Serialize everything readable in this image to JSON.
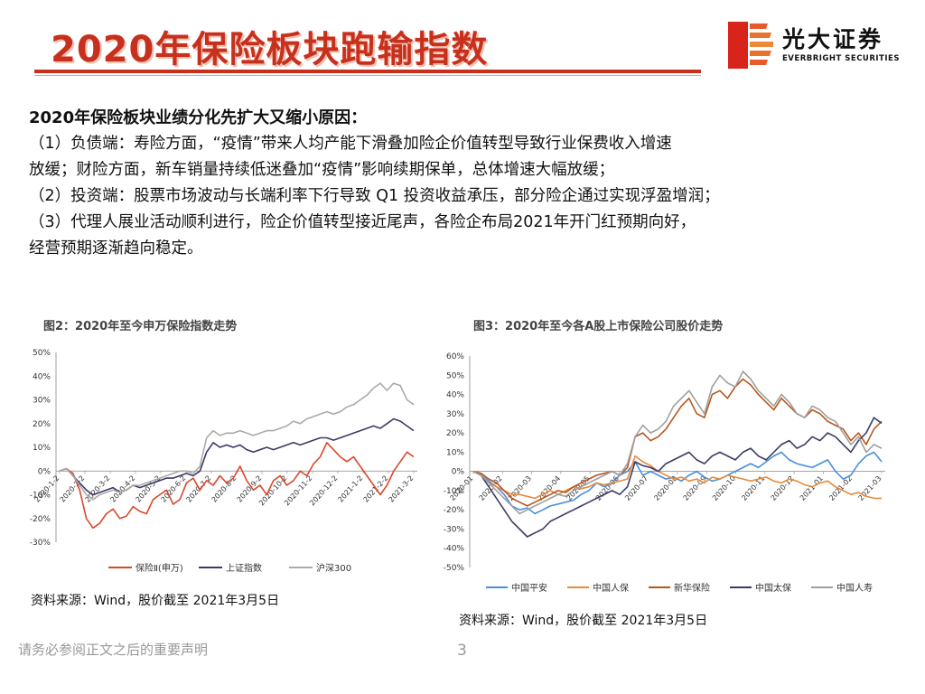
{
  "header": {
    "title": "2020年保险板块跑输指数",
    "logo_cn": "光大证券",
    "logo_en": "EVERBRIGHT SECURITIES"
  },
  "body": {
    "heading": "2020年保险板块业绩分化先扩大又缩小原因：",
    "lines": [
      "（1）负债端：寿险方面，“疫情”带来人均产能下滑叠加险企价值转型导致行业保费收入增速",
      "放缓；财险方面，新车销量持续低迷叠加“疫情”影响续期保单，总体增速大幅放缓；",
      "（2）投资端：股票市场波动与长端利率下行导致 Q1 投资收益承压，部分险企通过实现浮盈增润；",
      "（3）代理人展业活动顺利进行，险企价值转型接近尾声，各险企布局2021年开门红预期向好，",
      "经营预期逐渐趋向稳定。"
    ]
  },
  "figures": {
    "fig2_title": "图2：2020年至今申万保险指数走势",
    "fig3_title": "图3：2020年至今各A股上市保险公司股价走势",
    "fig2_source": "资料来源：Wind，股价截至 2021年3月5日",
    "fig3_source": "资料来源：Wind，股价截至 2021年3月5日"
  },
  "footer": {
    "note": "请务必参阅正文之后的重要声明",
    "page": "3"
  },
  "chart_data": [
    {
      "type": "line",
      "yticks": [
        "50%",
        "40%",
        "30%",
        "20%",
        "10%",
        "0%",
        "-10%",
        "-20%",
        "-30%"
      ],
      "ylim": [
        -30,
        50
      ],
      "xticks": [
        "2020-1-2",
        "2020-2-2",
        "2020-3-2",
        "2020-4-2",
        "2020-5-2",
        "2020-6-2",
        "2020-7-2",
        "2020-8-2",
        "2020-9-2",
        "2020-10-2",
        "2020-11-2",
        "2020-12-2",
        "2021-1-2",
        "2021-2-2",
        "2021-3-2"
      ],
      "legend_position": "bottom",
      "series": [
        {
          "name": "保险Ⅱ(申万)",
          "color": "#d9482b",
          "values": [
            0,
            1,
            -1,
            -8,
            -20,
            -24,
            -22,
            -18,
            -16,
            -20,
            -19,
            -15,
            -17,
            -18,
            -12,
            -10,
            -8,
            -14,
            -12,
            -5,
            -3,
            -8,
            -4,
            -6,
            -2,
            -5,
            -3,
            2,
            -4,
            -8,
            -6,
            -10,
            -4,
            -2,
            -6,
            -4,
            0,
            -2,
            3,
            6,
            12,
            9,
            6,
            4,
            6,
            2,
            -2,
            -6,
            -10,
            -6,
            0,
            4,
            8,
            6
          ]
        },
        {
          "name": "上证指数",
          "color": "#3a3a66",
          "values": [
            0,
            1,
            -2,
            -5,
            -8,
            -10,
            -9,
            -8,
            -7,
            -9,
            -8,
            -6,
            -7,
            -6,
            -5,
            -4,
            -3,
            -3,
            -2,
            -1,
            -2,
            0,
            8,
            12,
            10,
            11,
            10,
            11,
            9,
            8,
            9,
            10,
            9,
            10,
            11,
            12,
            11,
            12,
            13,
            14,
            14,
            13,
            14,
            15,
            16,
            17,
            18,
            19,
            18,
            20,
            22,
            21,
            19,
            17
          ]
        },
        {
          "name": "沪深300",
          "color": "#aaaaaa",
          "values": [
            0,
            1,
            -2,
            -6,
            -10,
            -12,
            -10,
            -9,
            -8,
            -9,
            -8,
            -6,
            -6,
            -5,
            -4,
            -3,
            -2,
            -1,
            0,
            0,
            -1,
            2,
            14,
            17,
            15,
            16,
            16,
            17,
            16,
            15,
            16,
            17,
            17,
            18,
            19,
            21,
            20,
            22,
            23,
            24,
            25,
            24,
            25,
            27,
            28,
            30,
            32,
            35,
            37,
            34,
            37,
            36,
            30,
            28
          ]
        }
      ]
    },
    {
      "type": "line",
      "yticks": [
        "60%",
        "50%",
        "40%",
        "30%",
        "20%",
        "10%",
        "0%",
        "-10%",
        "-20%",
        "-30%",
        "-40%",
        "-50%"
      ],
      "ylim": [
        -50,
        60
      ],
      "xticks": [
        "2020-01",
        "2020-02",
        "2020-03",
        "2020-04",
        "2020-05",
        "2020-06",
        "2020-07",
        "2020-08",
        "2020-09",
        "2020-10",
        "2020-11",
        "2020-12",
        "2021-01",
        "2021-02",
        "2021-03"
      ],
      "legend_position": "bottom",
      "series": [
        {
          "name": "中国平安",
          "color": "#4a90d9",
          "values": [
            0,
            -2,
            -5,
            -8,
            -12,
            -18,
            -20,
            -19,
            -22,
            -20,
            -18,
            -17,
            -16,
            -15,
            -12,
            -10,
            -6,
            -8,
            -6,
            -2,
            0,
            5,
            -2,
            0,
            -2,
            -4,
            -3,
            -5,
            -2,
            0,
            -3,
            -5,
            -4,
            -2,
            0,
            2,
            4,
            2,
            5,
            8,
            10,
            6,
            4,
            3,
            2,
            4,
            6,
            0,
            -4,
            -2,
            4,
            8,
            10,
            5
          ]
        },
        {
          "name": "中国人保",
          "color": "#e88a3a",
          "values": [
            0,
            -2,
            -6,
            -8,
            -10,
            -12,
            -12,
            -13,
            -14,
            -12,
            -10,
            -12,
            -10,
            -8,
            -9,
            -8,
            -6,
            -7,
            -6,
            -5,
            -4,
            8,
            5,
            3,
            0,
            -2,
            -4,
            -3,
            -5,
            -4,
            -6,
            -3,
            -4,
            -2,
            -3,
            -4,
            -5,
            -4,
            -3,
            -5,
            -6,
            -4,
            -5,
            -7,
            -8,
            -6,
            -5,
            -8,
            -10,
            -12,
            -11,
            -13,
            -14,
            -14
          ]
        },
        {
          "name": "新华保险",
          "color": "#b8561c",
          "values": [
            0,
            -1,
            -4,
            -6,
            -10,
            -14,
            -16,
            -18,
            -16,
            -14,
            -12,
            -10,
            -11,
            -8,
            -6,
            -4,
            -2,
            -1,
            0,
            -2,
            2,
            18,
            20,
            16,
            18,
            22,
            28,
            34,
            38,
            30,
            28,
            40,
            42,
            38,
            44,
            48,
            45,
            40,
            36,
            32,
            38,
            34,
            30,
            28,
            32,
            30,
            26,
            24,
            22,
            16,
            20,
            14,
            22,
            26
          ]
        },
        {
          "name": "中国太保",
          "color": "#3c3c66",
          "values": [
            0,
            -2,
            -8,
            -14,
            -20,
            -26,
            -30,
            -34,
            -32,
            -30,
            -26,
            -24,
            -22,
            -20,
            -18,
            -16,
            -14,
            -12,
            -10,
            -12,
            -8,
            5,
            3,
            2,
            0,
            4,
            6,
            8,
            10,
            6,
            4,
            8,
            10,
            8,
            6,
            10,
            12,
            8,
            6,
            10,
            14,
            16,
            12,
            14,
            18,
            16,
            20,
            18,
            14,
            10,
            16,
            20,
            28,
            25
          ]
        },
        {
          "name": "中国人寿",
          "color": "#a0a0a0",
          "values": [
            0,
            -2,
            -6,
            -10,
            -14,
            -18,
            -22,
            -20,
            -18,
            -16,
            -14,
            -12,
            -13,
            -10,
            -8,
            -6,
            -4,
            -2,
            0,
            -2,
            4,
            18,
            24,
            20,
            22,
            26,
            34,
            38,
            42,
            36,
            30,
            44,
            50,
            46,
            44,
            52,
            48,
            42,
            38,
            34,
            40,
            36,
            30,
            28,
            34,
            32,
            28,
            26,
            20,
            14,
            18,
            10,
            14,
            12
          ]
        }
      ]
    }
  ]
}
